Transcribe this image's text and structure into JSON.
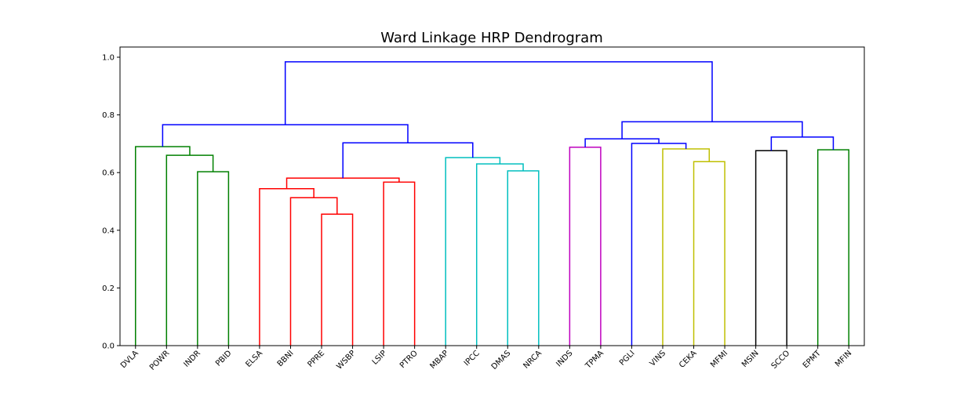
{
  "chart_data": {
    "type": "dendrogram",
    "title": "Ward Linkage HRP Dendrogram",
    "xlabel": "",
    "ylabel": "",
    "ylim": [
      0,
      1.0
    ],
    "yticks": [
      "0.0",
      "0.2",
      "0.4",
      "0.6",
      "0.8",
      "1.0"
    ],
    "ytick_values": [
      0,
      0.2,
      0.4,
      0.6,
      0.8,
      1.0
    ],
    "grid": false,
    "leaves": [
      "DVLA",
      "POWR",
      "INDR",
      "PBID",
      "ELSA",
      "BBNI",
      "PPRE",
      "WSBP",
      "LSIP",
      "PTRO",
      "MBAP",
      "IPCC",
      "DMAS",
      "NRCA",
      "INDS",
      "TPMA",
      "PGLI",
      "VINS",
      "CEKA",
      "MFMI",
      "MSIN",
      "SCCO",
      "EPMT",
      "MFIN"
    ],
    "colors": {
      "green": "#008000",
      "red": "#ff0000",
      "cyan": "#00bfbf",
      "magenta": "#bf00bf",
      "blue": "#0000ff",
      "yellow": "#bfbf00",
      "black": "#000000"
    },
    "merges": [
      {
        "id": "c1",
        "left": 2,
        "right": 3,
        "height": 0.603,
        "color": "green"
      },
      {
        "id": "c2",
        "left": 1,
        "right": "c1",
        "height": 0.66,
        "color": "green"
      },
      {
        "id": "c3",
        "left": 0,
        "right": "c2",
        "height": 0.69,
        "color": "green"
      },
      {
        "id": "c4",
        "left": 6,
        "right": 7,
        "height": 0.456,
        "color": "red"
      },
      {
        "id": "c5",
        "left": 5,
        "right": "c4",
        "height": 0.513,
        "color": "red"
      },
      {
        "id": "c6",
        "left": 4,
        "right": "c5",
        "height": 0.544,
        "color": "red"
      },
      {
        "id": "c7",
        "left": 8,
        "right": 9,
        "height": 0.567,
        "color": "red"
      },
      {
        "id": "c8",
        "left": "c6",
        "right": "c7",
        "height": 0.581,
        "color": "red"
      },
      {
        "id": "c9",
        "left": 12,
        "right": 13,
        "height": 0.606,
        "color": "cyan"
      },
      {
        "id": "c10",
        "left": 11,
        "right": "c9",
        "height": 0.63,
        "color": "cyan"
      },
      {
        "id": "c11",
        "left": 10,
        "right": "c10",
        "height": 0.652,
        "color": "cyan"
      },
      {
        "id": "c12",
        "left": "c8",
        "right": "c11",
        "height": 0.703,
        "color": "blue"
      },
      {
        "id": "c13",
        "left": "c3",
        "right": "c12",
        "height": 0.766,
        "color": "blue"
      },
      {
        "id": "c14",
        "left": 14,
        "right": 15,
        "height": 0.688,
        "color": "magenta"
      },
      {
        "id": "c15",
        "left": 18,
        "right": 19,
        "height": 0.638,
        "color": "yellow"
      },
      {
        "id": "c16",
        "left": 17,
        "right": "c15",
        "height": 0.682,
        "color": "yellow"
      },
      {
        "id": "c17",
        "left": 16,
        "right": "c16",
        "height": 0.701,
        "color": "blue"
      },
      {
        "id": "c18",
        "left": "c14",
        "right": "c17",
        "height": 0.717,
        "color": "blue"
      },
      {
        "id": "c19",
        "left": 20,
        "right": 21,
        "height": 0.676,
        "color": "black"
      },
      {
        "id": "c20",
        "left": 22,
        "right": 23,
        "height": 0.679,
        "color": "green"
      },
      {
        "id": "c21",
        "left": "c19",
        "right": "c20",
        "height": 0.723,
        "color": "blue"
      },
      {
        "id": "c22",
        "left": "c18",
        "right": "c21",
        "height": 0.776,
        "color": "blue"
      },
      {
        "id": "c23",
        "left": "c13",
        "right": "c22",
        "height": 0.984,
        "color": "blue"
      }
    ]
  }
}
